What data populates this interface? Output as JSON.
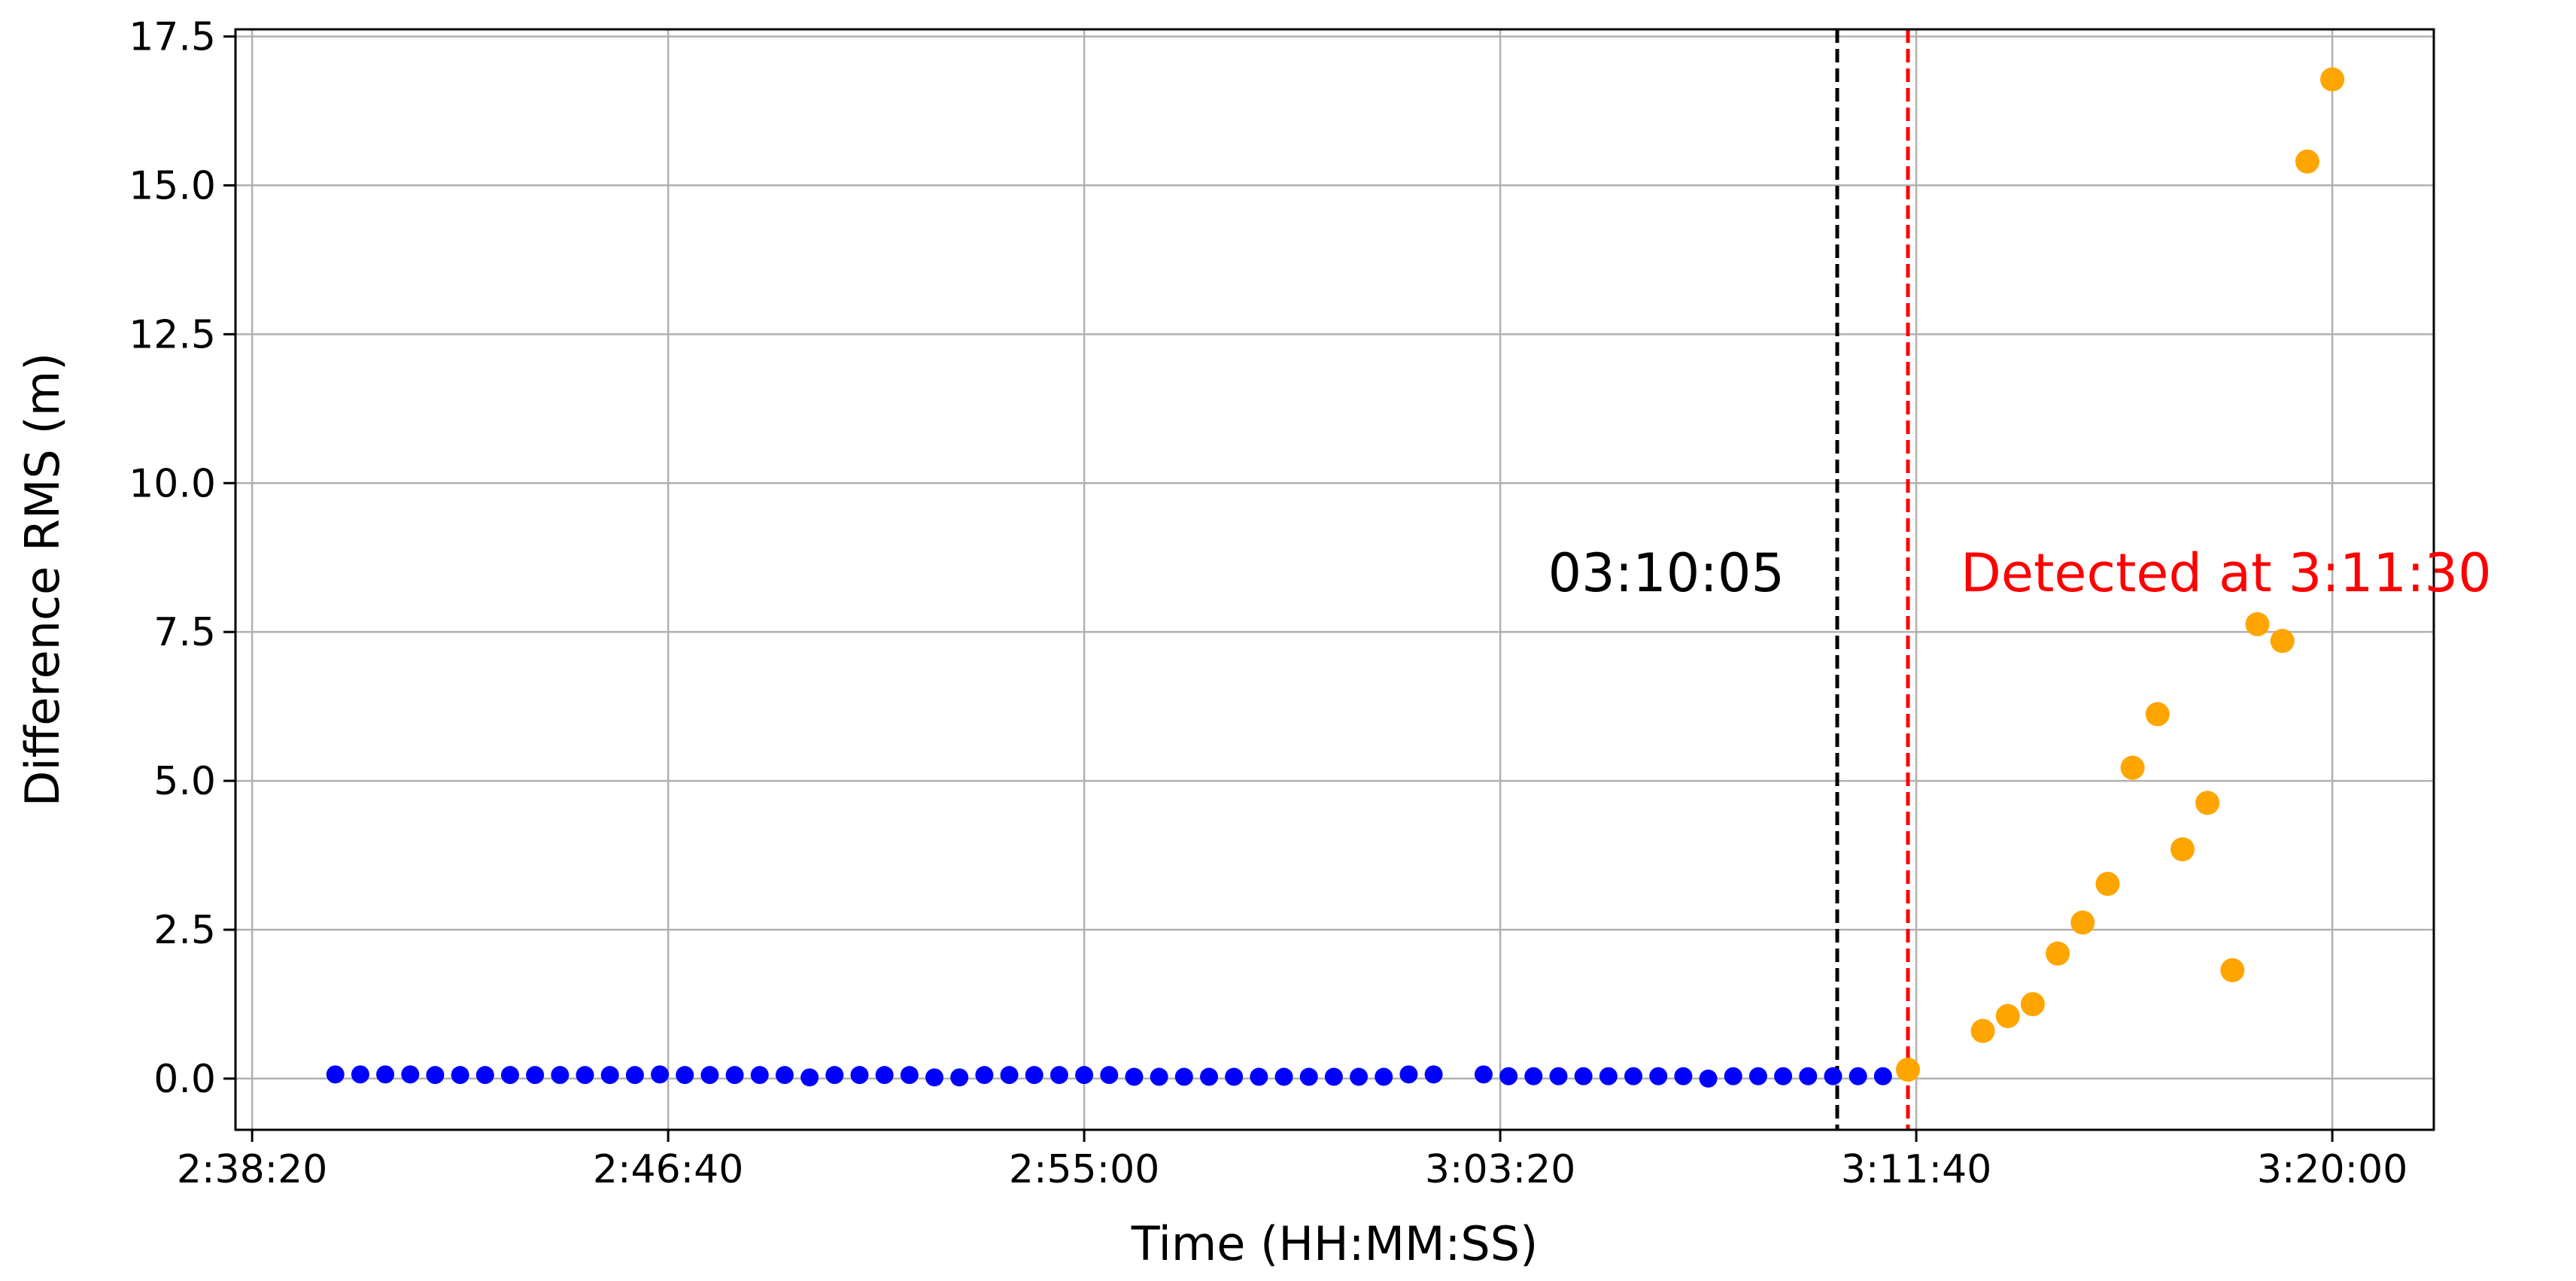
{
  "chart_data": {
    "type": "scatter",
    "xlabel": "Time (HH:MM:SS)",
    "ylabel": "Difference RMS (m)",
    "xlim": [
      "2:38:00",
      "3:22:02"
    ],
    "ylim": [
      -0.86,
      17.62
    ],
    "grid": true,
    "x_ticks": [
      "2:38:20",
      "2:46:40",
      "2:55:00",
      "3:03:20",
      "3:11:40",
      "3:20:00"
    ],
    "y_ticks": [
      "0.0",
      "2.5",
      "5.0",
      "7.5",
      "10.0",
      "12.5",
      "15.0",
      "17.5"
    ],
    "series": [
      {
        "color": "#0000ff",
        "points": [
          [
            "2:40:00",
            0.07
          ],
          [
            "2:40:30",
            0.07
          ],
          [
            "2:41:00",
            0.07
          ],
          [
            "2:41:30",
            0.07
          ],
          [
            "2:42:00",
            0.06
          ],
          [
            "2:42:30",
            0.06
          ],
          [
            "2:43:00",
            0.06
          ],
          [
            "2:43:30",
            0.06
          ],
          [
            "2:44:00",
            0.06
          ],
          [
            "2:44:30",
            0.06
          ],
          [
            "2:45:00",
            0.06
          ],
          [
            "2:45:30",
            0.06
          ],
          [
            "2:46:00",
            0.06
          ],
          [
            "2:46:30",
            0.07
          ],
          [
            "2:47:00",
            0.06
          ],
          [
            "2:47:30",
            0.06
          ],
          [
            "2:48:00",
            0.06
          ],
          [
            "2:48:30",
            0.06
          ],
          [
            "2:49:00",
            0.06
          ],
          [
            "2:49:30",
            0.02
          ],
          [
            "2:50:00",
            0.06
          ],
          [
            "2:50:30",
            0.06
          ],
          [
            "2:51:00",
            0.06
          ],
          [
            "2:51:30",
            0.06
          ],
          [
            "2:52:00",
            0.02
          ],
          [
            "2:52:30",
            0.02
          ],
          [
            "2:53:00",
            0.06
          ],
          [
            "2:53:30",
            0.06
          ],
          [
            "2:54:00",
            0.06
          ],
          [
            "2:54:30",
            0.06
          ],
          [
            "2:55:00",
            0.06
          ],
          [
            "2:55:30",
            0.06
          ],
          [
            "2:56:00",
            0.03
          ],
          [
            "2:56:30",
            0.03
          ],
          [
            "2:57:00",
            0.03
          ],
          [
            "2:57:30",
            0.03
          ],
          [
            "2:58:00",
            0.03
          ],
          [
            "2:58:30",
            0.03
          ],
          [
            "2:59:00",
            0.03
          ],
          [
            "2:59:30",
            0.03
          ],
          [
            "3:00:00",
            0.03
          ],
          [
            "3:00:30",
            0.03
          ],
          [
            "3:01:00",
            0.03
          ],
          [
            "3:01:30",
            0.07
          ],
          [
            "3:02:00",
            0.07
          ],
          [
            "3:03:00",
            0.07
          ],
          [
            "3:03:30",
            0.04
          ],
          [
            "3:04:00",
            0.04
          ],
          [
            "3:04:30",
            0.04
          ],
          [
            "3:05:00",
            0.04
          ],
          [
            "3:05:30",
            0.04
          ],
          [
            "3:06:00",
            0.04
          ],
          [
            "3:06:30",
            0.04
          ],
          [
            "3:07:00",
            0.04
          ],
          [
            "3:07:30",
            0.0
          ],
          [
            "3:08:00",
            0.04
          ],
          [
            "3:08:30",
            0.04
          ],
          [
            "3:09:00",
            0.04
          ],
          [
            "3:09:30",
            0.04
          ],
          [
            "3:10:00",
            0.04
          ],
          [
            "3:10:30",
            0.04
          ],
          [
            "3:11:00",
            0.04
          ]
        ]
      },
      {
        "color": "#ffa500",
        "points": [
          [
            "3:11:30",
            0.15
          ],
          [
            "3:13:00",
            0.8
          ],
          [
            "3:13:30",
            1.05
          ],
          [
            "3:14:00",
            1.25
          ],
          [
            "3:14:30",
            2.1
          ],
          [
            "3:15:00",
            2.62
          ],
          [
            "3:15:30",
            3.27
          ],
          [
            "3:16:00",
            5.22
          ],
          [
            "3:16:30",
            6.12
          ],
          [
            "3:17:00",
            3.85
          ],
          [
            "3:17:30",
            4.63
          ],
          [
            "3:18:00",
            1.82
          ],
          [
            "3:18:30",
            7.63
          ],
          [
            "3:19:00",
            7.35
          ],
          [
            "3:19:30",
            15.4
          ],
          [
            "3:20:00",
            16.78
          ]
        ]
      }
    ],
    "vlines": [
      {
        "x": "3:10:05",
        "color": "#000000",
        "style": "dashed"
      },
      {
        "x": "3:11:30",
        "color": "#ff0000",
        "style": "dashed"
      }
    ],
    "annotations": [
      {
        "text": "03:10:05",
        "x": "3:10:05",
        "y": 8.5,
        "color": "#000000",
        "align": "right"
      },
      {
        "text": "Detected at 3:11:30",
        "x": "3:11:30",
        "y": 8.5,
        "color": "#ff0000",
        "align": "left"
      }
    ]
  }
}
